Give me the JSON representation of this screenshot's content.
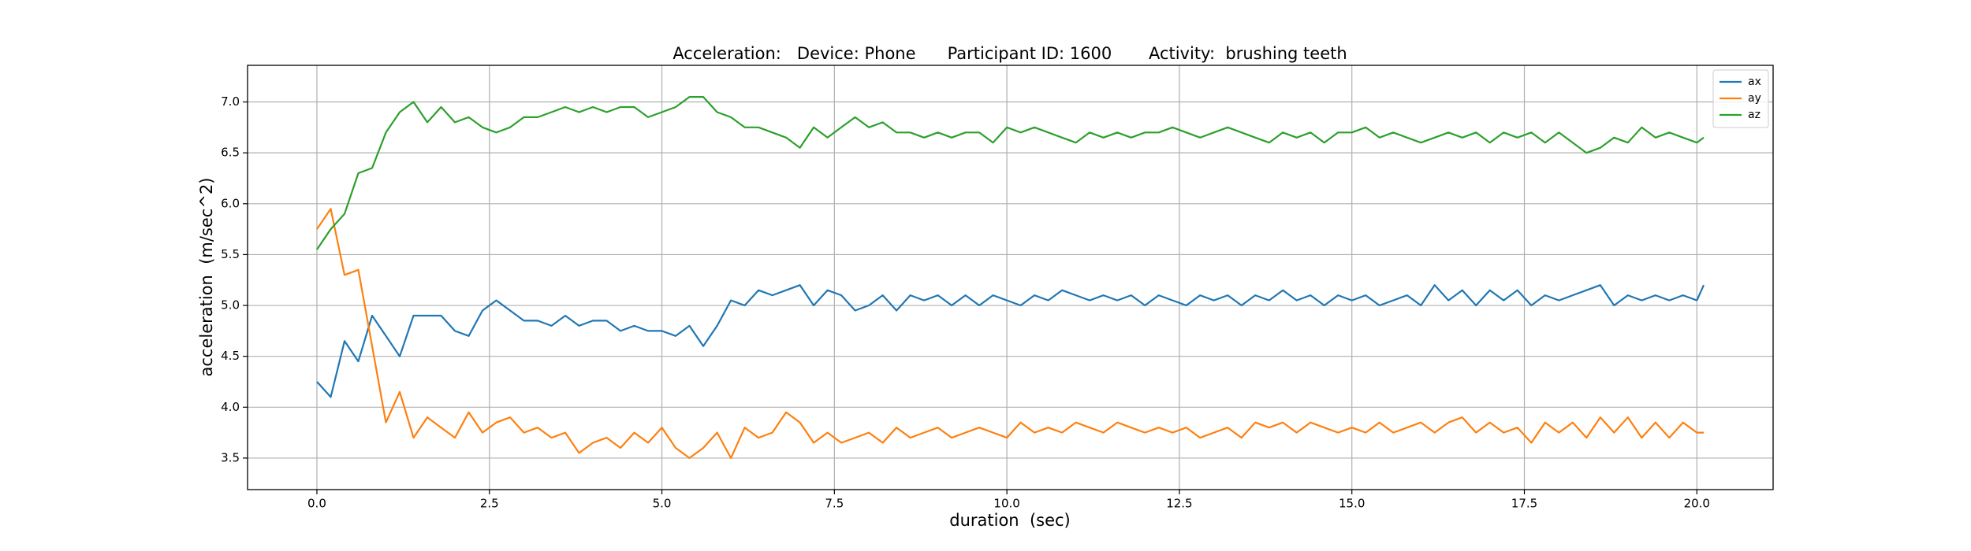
{
  "chart_data": {
    "type": "line",
    "title": "Acceleration:   Device: Phone      Participant ID: 1600       Activity:  brushing teeth",
    "x_label": "duration  (sec)",
    "y_label": "acceleration  (m/sec^2)",
    "x": [
      0,
      0.2,
      0.4,
      0.6,
      0.8,
      1,
      1.2,
      1.4,
      1.6,
      1.8,
      2,
      2.2,
      2.4,
      2.6,
      2.8,
      3,
      3.2,
      3.4,
      3.6,
      3.8,
      4,
      4.2,
      4.4,
      4.6,
      4.8,
      5,
      5.2,
      5.4,
      5.6,
      5.8,
      6,
      6.2,
      6.4,
      6.6,
      6.8,
      7,
      7.2,
      7.4,
      7.6,
      7.8,
      8,
      8.2,
      8.4,
      8.6,
      8.8,
      9,
      9.2,
      9.4,
      9.6,
      9.8,
      10,
      10.2,
      10.4,
      10.6,
      10.8,
      11,
      11.2,
      11.4,
      11.6,
      11.8,
      12,
      12.2,
      12.4,
      12.6,
      12.8,
      13,
      13.2,
      13.4,
      13.6,
      13.8,
      14,
      14.2,
      14.4,
      14.6,
      14.8,
      15,
      15.2,
      15.4,
      15.6,
      15.8,
      16,
      16.2,
      16.4,
      16.6,
      16.8,
      17,
      17.2,
      17.4,
      17.6,
      17.8,
      18,
      18.2,
      18.4,
      18.6,
      18.8,
      19,
      19.2,
      19.4,
      19.6,
      19.8,
      20,
      20.1
    ],
    "series": [
      {
        "name": "ax",
        "color": "#1f77b4",
        "values": [
          4.25,
          4.1,
          4.65,
          4.45,
          4.9,
          4.7,
          4.5,
          4.9,
          4.9,
          4.9,
          4.75,
          4.7,
          4.95,
          5.05,
          4.95,
          4.85,
          4.85,
          4.8,
          4.9,
          4.8,
          4.85,
          4.85,
          4.75,
          4.8,
          4.75,
          4.75,
          4.7,
          4.8,
          4.6,
          4.8,
          5.05,
          5.0,
          5.15,
          5.1,
          5.15,
          5.2,
          5.0,
          5.15,
          5.1,
          4.95,
          5.0,
          5.1,
          4.95,
          5.1,
          5.05,
          5.1,
          5.0,
          5.1,
          5.0,
          5.1,
          5.05,
          5.0,
          5.1,
          5.05,
          5.15,
          5.1,
          5.05,
          5.1,
          5.05,
          5.1,
          5.0,
          5.1,
          5.05,
          5.0,
          5.1,
          5.05,
          5.1,
          5.0,
          5.1,
          5.05,
          5.15,
          5.05,
          5.1,
          5.0,
          5.1,
          5.05,
          5.1,
          5.0,
          5.05,
          5.1,
          5.0,
          5.2,
          5.05,
          5.15,
          5.0,
          5.15,
          5.05,
          5.15,
          5.0,
          5.1,
          5.05,
          5.1,
          5.15,
          5.2,
          5.0,
          5.1,
          5.05,
          5.1,
          5.05,
          5.1,
          5.05,
          5.2
        ]
      },
      {
        "name": "ay",
        "color": "#ff7f0e",
        "values": [
          5.75,
          5.95,
          5.3,
          5.35,
          4.6,
          3.85,
          4.15,
          3.7,
          3.9,
          3.8,
          3.7,
          3.95,
          3.75,
          3.85,
          3.9,
          3.75,
          3.8,
          3.7,
          3.75,
          3.55,
          3.65,
          3.7,
          3.6,
          3.75,
          3.65,
          3.8,
          3.6,
          3.5,
          3.6,
          3.75,
          3.5,
          3.8,
          3.7,
          3.75,
          3.95,
          3.85,
          3.65,
          3.75,
          3.65,
          3.7,
          3.75,
          3.65,
          3.8,
          3.7,
          3.75,
          3.8,
          3.7,
          3.75,
          3.8,
          3.75,
          3.7,
          3.85,
          3.75,
          3.8,
          3.75,
          3.85,
          3.8,
          3.75,
          3.85,
          3.8,
          3.75,
          3.8,
          3.75,
          3.8,
          3.7,
          3.75,
          3.8,
          3.7,
          3.85,
          3.8,
          3.85,
          3.75,
          3.85,
          3.8,
          3.75,
          3.8,
          3.75,
          3.85,
          3.75,
          3.8,
          3.85,
          3.75,
          3.85,
          3.9,
          3.75,
          3.85,
          3.75,
          3.8,
          3.65,
          3.85,
          3.75,
          3.85,
          3.7,
          3.9,
          3.75,
          3.9,
          3.7,
          3.85,
          3.7,
          3.85,
          3.75,
          3.75
        ]
      },
      {
        "name": "az",
        "color": "#2ca02c",
        "values": [
          5.55,
          5.75,
          5.9,
          6.3,
          6.35,
          6.7,
          6.9,
          7.0,
          6.8,
          6.95,
          6.8,
          6.85,
          6.75,
          6.7,
          6.75,
          6.85,
          6.85,
          6.9,
          6.95,
          6.9,
          6.95,
          6.9,
          6.95,
          6.95,
          6.85,
          6.9,
          6.95,
          7.05,
          7.05,
          6.9,
          6.85,
          6.75,
          6.75,
          6.7,
          6.65,
          6.55,
          6.75,
          6.65,
          6.75,
          6.85,
          6.75,
          6.8,
          6.7,
          6.7,
          6.65,
          6.7,
          6.65,
          6.7,
          6.7,
          6.6,
          6.75,
          6.7,
          6.75,
          6.7,
          6.65,
          6.6,
          6.7,
          6.65,
          6.7,
          6.65,
          6.7,
          6.7,
          6.75,
          6.7,
          6.65,
          6.7,
          6.75,
          6.7,
          6.65,
          6.6,
          6.7,
          6.65,
          6.7,
          6.6,
          6.7,
          6.7,
          6.75,
          6.65,
          6.7,
          6.65,
          6.6,
          6.65,
          6.7,
          6.65,
          6.7,
          6.6,
          6.7,
          6.65,
          6.7,
          6.6,
          6.7,
          6.6,
          6.5,
          6.55,
          6.65,
          6.6,
          6.75,
          6.65,
          6.7,
          6.65,
          6.6,
          6.65
        ]
      }
    ],
    "xlim": [
      -1.005,
      21.105
    ],
    "ylim": [
      3.19,
      7.36
    ],
    "xticks": [
      {
        "value": 0,
        "label": "0.0"
      },
      2.5,
      {
        "value": 5,
        "label": "5.0"
      },
      7.5,
      {
        "value": 10,
        "label": "10.0"
      },
      12.5,
      {
        "value": 15,
        "label": "15.0"
      },
      17.5,
      {
        "value": 20,
        "label": "20.0"
      }
    ],
    "yticks": [
      3.5,
      {
        "value": 4,
        "label": "4.0"
      },
      4.5,
      {
        "value": 5,
        "label": "5.0"
      },
      5.5,
      {
        "value": 6,
        "label": "6.0"
      },
      6.5,
      {
        "value": 7,
        "label": "7.0"
      }
    ],
    "grid": true,
    "legend": "upper right"
  }
}
